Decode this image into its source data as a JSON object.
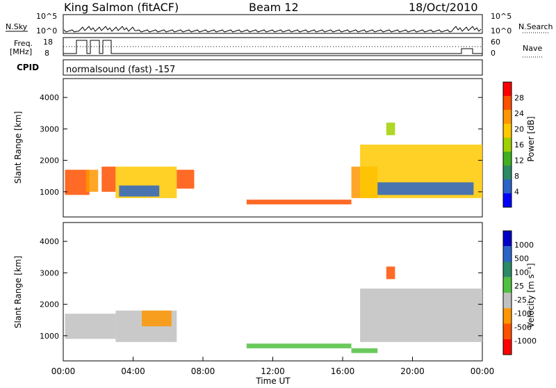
{
  "header": {
    "station": "King Salmon (fitACF)",
    "beam": "Beam 12",
    "date": "18/Oct/2010"
  },
  "aux": {
    "nsky_label": "N.Sky",
    "nsky_ticks": [
      "10^5",
      "10^0"
    ],
    "nsearch_label": "N.Search",
    "nsearch_ticks": [
      "10^5",
      "10^0"
    ],
    "freq_label_1": "Freq.",
    "freq_label_2": "[MHz]",
    "freq_ticks": [
      "18",
      "8"
    ],
    "nave_label": "Nave",
    "nave_ticks": [
      "60",
      "0"
    ],
    "cpid_label": "CPID",
    "cpid_text": "normalsound (fast) -157"
  },
  "chart_data": [
    {
      "type": "heatmap",
      "name": "power",
      "ylabel": "Slant Range [km]",
      "ytick_labels": [
        "1000",
        "2000",
        "3000",
        "4000"
      ],
      "ylim": [
        200,
        4600
      ],
      "xlim": [
        0,
        24
      ],
      "colorbar": {
        "label": "Power [dB]",
        "ticks": [
          "28",
          "24",
          "20",
          "16",
          "12",
          "8",
          "4"
        ],
        "colors": [
          "#ff0000",
          "#ff5000",
          "#ff9600",
          "#ffc800",
          "#a0d000",
          "#40b020",
          "#2a8a64",
          "#2a64c8",
          "#0000ff"
        ]
      },
      "patches": [
        {
          "t": [
            0.1,
            1.5
          ],
          "r": [
            900,
            1700
          ],
          "level": 1
        },
        {
          "t": [
            1.3,
            2.0
          ],
          "r": [
            1000,
            1700
          ],
          "level": 2
        },
        {
          "t": [
            2.2,
            3.0
          ],
          "r": [
            1000,
            1800
          ],
          "level": 1
        },
        {
          "t": [
            3.0,
            6.5
          ],
          "r": [
            800,
            1800
          ],
          "level": 3
        },
        {
          "t": [
            3.2,
            5.5
          ],
          "r": [
            850,
            1200
          ],
          "level": 7
        },
        {
          "t": [
            6.5,
            7.5
          ],
          "r": [
            1100,
            1700
          ],
          "level": 1
        },
        {
          "t": [
            10.5,
            16.5
          ],
          "r": [
            600,
            750
          ],
          "level": 1
        },
        {
          "t": [
            16.5,
            18.0
          ],
          "r": [
            800,
            1800
          ],
          "level": 2
        },
        {
          "t": [
            17.0,
            24.0
          ],
          "r": [
            800,
            2500
          ],
          "level": 3
        },
        {
          "t": [
            18.0,
            23.5
          ],
          "r": [
            900,
            1300
          ],
          "level": 7
        },
        {
          "t": [
            18.5,
            19.0
          ],
          "r": [
            2800,
            3200
          ],
          "level": 4
        }
      ]
    },
    {
      "type": "heatmap",
      "name": "velocity",
      "ylabel": "Slant Range [km]",
      "ytick_labels": [
        "1000",
        "2000",
        "3000",
        "4000"
      ],
      "ylim": [
        200,
        4600
      ],
      "xlim": [
        0,
        24
      ],
      "xtick_labels": [
        "00:00",
        "04:00",
        "08:00",
        "12:00",
        "16:00",
        "20:00",
        "00:00"
      ],
      "xlabel": "Time UT",
      "colorbar": {
        "label": "Velocity [m s⁻¹]",
        "ticks": [
          "1000",
          "500",
          "100",
          "25",
          "-25",
          "-100",
          "-500",
          "-1000"
        ],
        "colors": [
          "#0000c8",
          "#2a64c8",
          "#2a8a64",
          "#50c040",
          "#c0c0c0",
          "#ff9600",
          "#ff5000",
          "#ff0000"
        ]
      },
      "patches": [
        {
          "t": [
            0.1,
            3.0
          ],
          "r": [
            900,
            1700
          ],
          "level": 4
        },
        {
          "t": [
            3.0,
            6.5
          ],
          "r": [
            800,
            1800
          ],
          "level": 4
        },
        {
          "t": [
            4.5,
            6.2
          ],
          "r": [
            1300,
            1800
          ],
          "level": 5
        },
        {
          "t": [
            10.5,
            16.5
          ],
          "r": [
            600,
            750
          ],
          "level": 3
        },
        {
          "t": [
            17.0,
            24.0
          ],
          "r": [
            800,
            2500
          ],
          "level": 4
        },
        {
          "t": [
            16.5,
            18.0
          ],
          "r": [
            450,
            600
          ],
          "level": 3
        },
        {
          "t": [
            18.5,
            19.0
          ],
          "r": [
            2800,
            3200
          ],
          "level": 6
        }
      ]
    }
  ]
}
